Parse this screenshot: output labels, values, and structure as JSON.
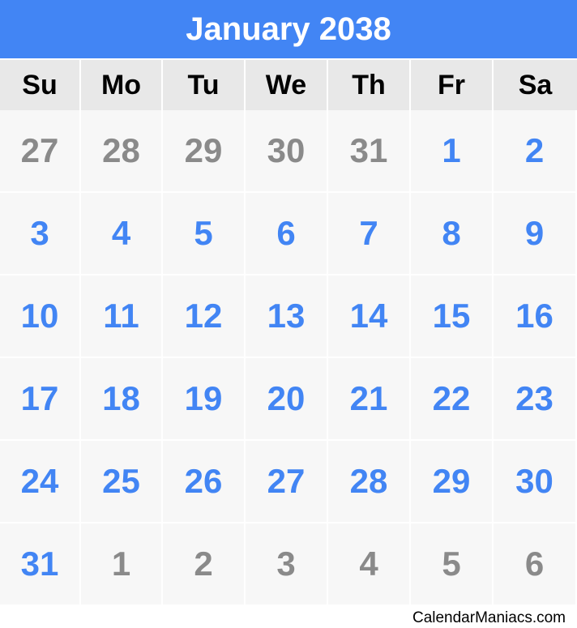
{
  "title": "January 2038",
  "weekdays": [
    "Su",
    "Mo",
    "Tu",
    "We",
    "Th",
    "Fr",
    "Sa"
  ],
  "weeks": [
    [
      {
        "d": "27",
        "in": false
      },
      {
        "d": "28",
        "in": false
      },
      {
        "d": "29",
        "in": false
      },
      {
        "d": "30",
        "in": false
      },
      {
        "d": "31",
        "in": false
      },
      {
        "d": "1",
        "in": true
      },
      {
        "d": "2",
        "in": true
      }
    ],
    [
      {
        "d": "3",
        "in": true
      },
      {
        "d": "4",
        "in": true
      },
      {
        "d": "5",
        "in": true
      },
      {
        "d": "6",
        "in": true
      },
      {
        "d": "7",
        "in": true
      },
      {
        "d": "8",
        "in": true
      },
      {
        "d": "9",
        "in": true
      }
    ],
    [
      {
        "d": "10",
        "in": true
      },
      {
        "d": "11",
        "in": true
      },
      {
        "d": "12",
        "in": true
      },
      {
        "d": "13",
        "in": true
      },
      {
        "d": "14",
        "in": true
      },
      {
        "d": "15",
        "in": true
      },
      {
        "d": "16",
        "in": true
      }
    ],
    [
      {
        "d": "17",
        "in": true
      },
      {
        "d": "18",
        "in": true
      },
      {
        "d": "19",
        "in": true
      },
      {
        "d": "20",
        "in": true
      },
      {
        "d": "21",
        "in": true
      },
      {
        "d": "22",
        "in": true
      },
      {
        "d": "23",
        "in": true
      }
    ],
    [
      {
        "d": "24",
        "in": true
      },
      {
        "d": "25",
        "in": true
      },
      {
        "d": "26",
        "in": true
      },
      {
        "d": "27",
        "in": true
      },
      {
        "d": "28",
        "in": true
      },
      {
        "d": "29",
        "in": true
      },
      {
        "d": "30",
        "in": true
      }
    ],
    [
      {
        "d": "31",
        "in": true
      },
      {
        "d": "1",
        "in": false
      },
      {
        "d": "2",
        "in": false
      },
      {
        "d": "3",
        "in": false
      },
      {
        "d": "4",
        "in": false
      },
      {
        "d": "5",
        "in": false
      },
      {
        "d": "6",
        "in": false
      }
    ]
  ],
  "footer": "CalendarManiacs.com",
  "colors": {
    "header_bg": "#4285f4",
    "in_month": "#4285f4",
    "out_month": "#8a8a8a",
    "weekday_bg": "#e8e8e8",
    "cell_bg": "#f7f7f7"
  }
}
